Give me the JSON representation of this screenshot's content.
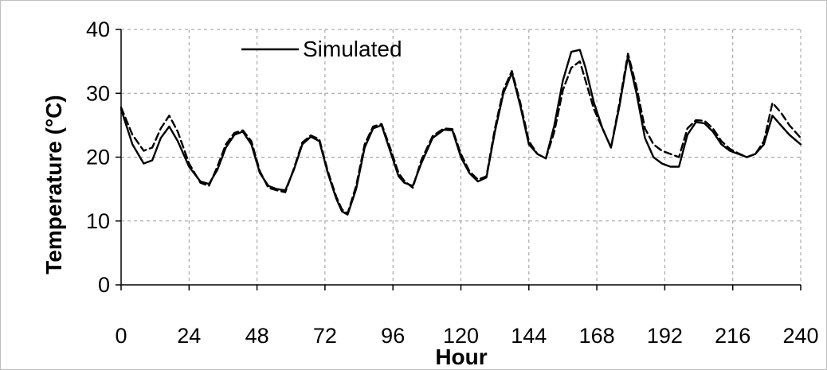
{
  "chart_data": {
    "type": "line",
    "xlabel": "Hour",
    "ylabel": "Temperature (°C)",
    "xlim": [
      0,
      240
    ],
    "ylim": [
      0,
      40
    ],
    "xticks": [
      0,
      24,
      48,
      72,
      96,
      120,
      144,
      168,
      192,
      216,
      240
    ],
    "yticks": [
      0,
      10,
      20,
      30,
      40
    ],
    "grid": true,
    "legend_position": "top-left",
    "series": [
      {
        "name": "Simulated",
        "style": "solid",
        "color": "#000000",
        "x": [
          0,
          4,
          8,
          11,
          14,
          17,
          20,
          24,
          28,
          31,
          34,
          37,
          40,
          43,
          46,
          49,
          52,
          55,
          58,
          61,
          64,
          67,
          70,
          73,
          76,
          78,
          80,
          83,
          86,
          89,
          92,
          95,
          98,
          100,
          103,
          106,
          110,
          114,
          117,
          120,
          123,
          126,
          129,
          132,
          135,
          138,
          141,
          144,
          147,
          150,
          153,
          156,
          159,
          162,
          164,
          167,
          170,
          173,
          176,
          179,
          182,
          185,
          188,
          191,
          194,
          197,
          200,
          203,
          206,
          209,
          212,
          215,
          218,
          221,
          224,
          227,
          230,
          233,
          236,
          240
        ],
        "y": [
          27.5,
          22,
          19,
          19.5,
          23,
          24.8,
          22.5,
          18.5,
          16.2,
          15.8,
          18,
          21.5,
          23.5,
          24,
          22,
          17.5,
          15.5,
          15,
          14.8,
          18,
          22,
          23.2,
          22.5,
          17.5,
          13.5,
          11.5,
          11,
          15,
          21.5,
          24.5,
          25,
          21,
          17,
          16,
          15.5,
          19,
          23,
          24.3,
          24.2,
          20,
          17.5,
          16.2,
          16.8,
          24,
          30,
          33.2,
          28,
          22,
          20.5,
          19.8,
          25,
          32,
          36.5,
          36.8,
          34,
          28.5,
          24.5,
          21.5,
          28,
          35.8,
          30,
          23,
          20,
          19,
          18.5,
          18.5,
          23.5,
          25.5,
          25.3,
          24,
          22,
          21,
          20.5,
          20,
          20.5,
          22,
          26.5,
          25,
          23.5,
          22
        ]
      },
      {
        "name": "",
        "style": "dashed",
        "color": "#000000",
        "x": [
          0,
          4,
          8,
          11,
          14,
          17,
          20,
          24,
          28,
          31,
          34,
          37,
          40,
          43,
          46,
          49,
          52,
          55,
          58,
          61,
          64,
          67,
          70,
          73,
          76,
          78,
          80,
          83,
          86,
          89,
          92,
          95,
          98,
          100,
          103,
          106,
          110,
          114,
          117,
          120,
          123,
          126,
          129,
          132,
          135,
          138,
          141,
          144,
          147,
          150,
          153,
          156,
          159,
          162,
          164,
          167,
          170,
          173,
          176,
          179,
          182,
          185,
          188,
          191,
          194,
          197,
          200,
          203,
          206,
          209,
          212,
          215,
          218,
          221,
          224,
          227,
          230,
          233,
          236,
          240
        ],
        "y": [
          27.8,
          23.5,
          21,
          21.5,
          24.5,
          26.5,
          24,
          19,
          16,
          15.5,
          18.5,
          22,
          23.8,
          24.2,
          22.5,
          17.8,
          15.2,
          14.8,
          14.5,
          18.2,
          22.3,
          23.4,
          22.8,
          17.8,
          13.8,
          11.8,
          11.2,
          15.5,
          22,
          24.8,
          25.2,
          21.5,
          17.5,
          16.3,
          15.2,
          19.5,
          23.3,
          24.5,
          24.4,
          20.5,
          17.8,
          16.5,
          17,
          24.5,
          30.5,
          33.5,
          28.5,
          22.5,
          20.5,
          19.8,
          24,
          30.5,
          34,
          35,
          32,
          27.5,
          24.5,
          21.5,
          28.5,
          36.2,
          31,
          24.5,
          22,
          21,
          20.5,
          20,
          24.5,
          25.8,
          25.7,
          24.5,
          22.5,
          21.3,
          20.6,
          20,
          20.5,
          22.5,
          28.5,
          27,
          25,
          23
        ]
      }
    ]
  }
}
